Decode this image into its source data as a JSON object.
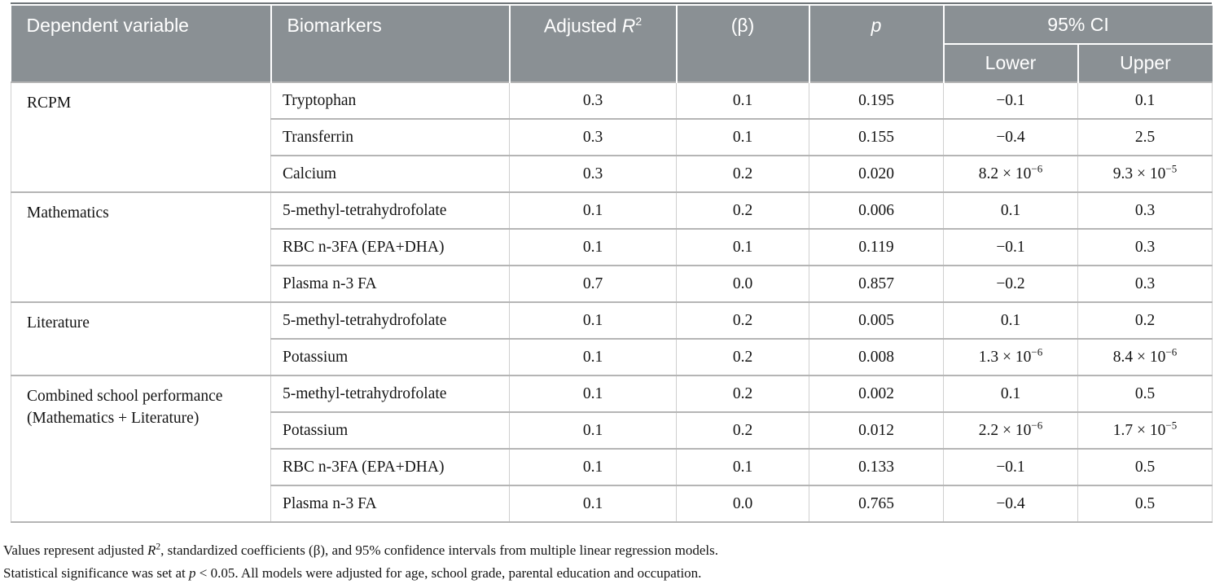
{
  "table": {
    "accent_color": "#8a9094",
    "top_line_color": "#6f7578",
    "header": {
      "dependent_variable": "Dependent variable",
      "biomarkers": "Biomarkers",
      "adjusted_r2": {
        "prefix": "Adjusted ",
        "symbol": "R",
        "sup": "2"
      },
      "beta": "(β)",
      "p": "p",
      "ci": "95% CI",
      "ci_lower": "Lower",
      "ci_upper": "Upper"
    },
    "sections": [
      {
        "dependent_variable_lines": [
          "RCPM"
        ],
        "rows": [
          {
            "biomarker": "Tryptophan",
            "adjusted_r2": "0.3",
            "beta": "0.1",
            "p": "0.195",
            "lower": {
              "base": "−0.1"
            },
            "upper": {
              "base": "0.1"
            }
          },
          {
            "biomarker": "Transferrin",
            "adjusted_r2": "0.3",
            "beta": "0.1",
            "p": "0.155",
            "lower": {
              "base": "−0.4"
            },
            "upper": {
              "base": "2.5"
            }
          },
          {
            "biomarker": "Calcium",
            "adjusted_r2": "0.3",
            "beta": "0.2",
            "p": "0.020",
            "lower": {
              "base": "8.2 × 10",
              "exp": "−6"
            },
            "upper": {
              "base": "9.3 × 10",
              "exp": "−5"
            }
          }
        ]
      },
      {
        "dependent_variable_lines": [
          "Mathematics"
        ],
        "rows": [
          {
            "biomarker": "5-methyl-tetrahydrofolate",
            "adjusted_r2": "0.1",
            "beta": "0.2",
            "p": "0.006",
            "lower": {
              "base": "0.1"
            },
            "upper": {
              "base": "0.3"
            }
          },
          {
            "biomarker": "RBC n-3FA (EPA+DHA)",
            "adjusted_r2": "0.1",
            "beta": "0.1",
            "p": "0.119",
            "lower": {
              "base": "−0.1"
            },
            "upper": {
              "base": "0.3"
            }
          },
          {
            "biomarker": "Plasma n-3 FA",
            "adjusted_r2": "0.7",
            "beta": "0.0",
            "p": "0.857",
            "lower": {
              "base": "−0.2"
            },
            "upper": {
              "base": "0.3"
            }
          }
        ]
      },
      {
        "dependent_variable_lines": [
          "Literature"
        ],
        "rows": [
          {
            "biomarker": "5-methyl-tetrahydrofolate",
            "adjusted_r2": "0.1",
            "beta": "0.2",
            "p": "0.005",
            "lower": {
              "base": "0.1"
            },
            "upper": {
              "base": "0.2"
            }
          },
          {
            "biomarker": "Potassium",
            "adjusted_r2": "0.1",
            "beta": "0.2",
            "p": "0.008",
            "lower": {
              "base": "1.3 × 10",
              "exp": "−6"
            },
            "upper": {
              "base": "8.4 × 10",
              "exp": "−6"
            }
          }
        ]
      },
      {
        "dependent_variable_lines": [
          "Combined school performance",
          "(Mathematics + Literature)"
        ],
        "rows": [
          {
            "biomarker": "5-methyl-tetrahydrofolate",
            "adjusted_r2": "0.1",
            "beta": "0.2",
            "p": "0.002",
            "lower": {
              "base": "0.1"
            },
            "upper": {
              "base": "0.5"
            }
          },
          {
            "biomarker": "Potassium",
            "adjusted_r2": "0.1",
            "beta": "0.2",
            "p": "0.012",
            "lower": {
              "base": "2.2 × 10",
              "exp": "−6"
            },
            "upper": {
              "base": "1.7 × 10",
              "exp": "−5"
            }
          },
          {
            "biomarker": "RBC n-3FA (EPA+DHA)",
            "adjusted_r2": "0.1",
            "beta": "0.1",
            "p": "0.133",
            "lower": {
              "base": "−0.1"
            },
            "upper": {
              "base": "0.5"
            }
          },
          {
            "biomarker": "Plasma n-3 FA",
            "adjusted_r2": "0.1",
            "beta": "0.0",
            "p": "0.765",
            "lower": {
              "base": "−0.4"
            },
            "upper": {
              "base": "0.5"
            }
          }
        ]
      }
    ],
    "footnotes": [
      {
        "segments": [
          {
            "t": "Values represent adjusted "
          },
          {
            "t": "R",
            "style": "italic"
          },
          {
            "t": "2",
            "style": "sup"
          },
          {
            "t": ", standardized coefficients (β), and 95% confidence intervals from multiple linear regression models."
          }
        ]
      },
      {
        "segments": [
          {
            "t": "Statistical significance was set at "
          },
          {
            "t": "p",
            "style": "italic"
          },
          {
            "t": " < 0.05. All models were adjusted for age, school grade, parental education and occupation."
          }
        ]
      }
    ]
  }
}
